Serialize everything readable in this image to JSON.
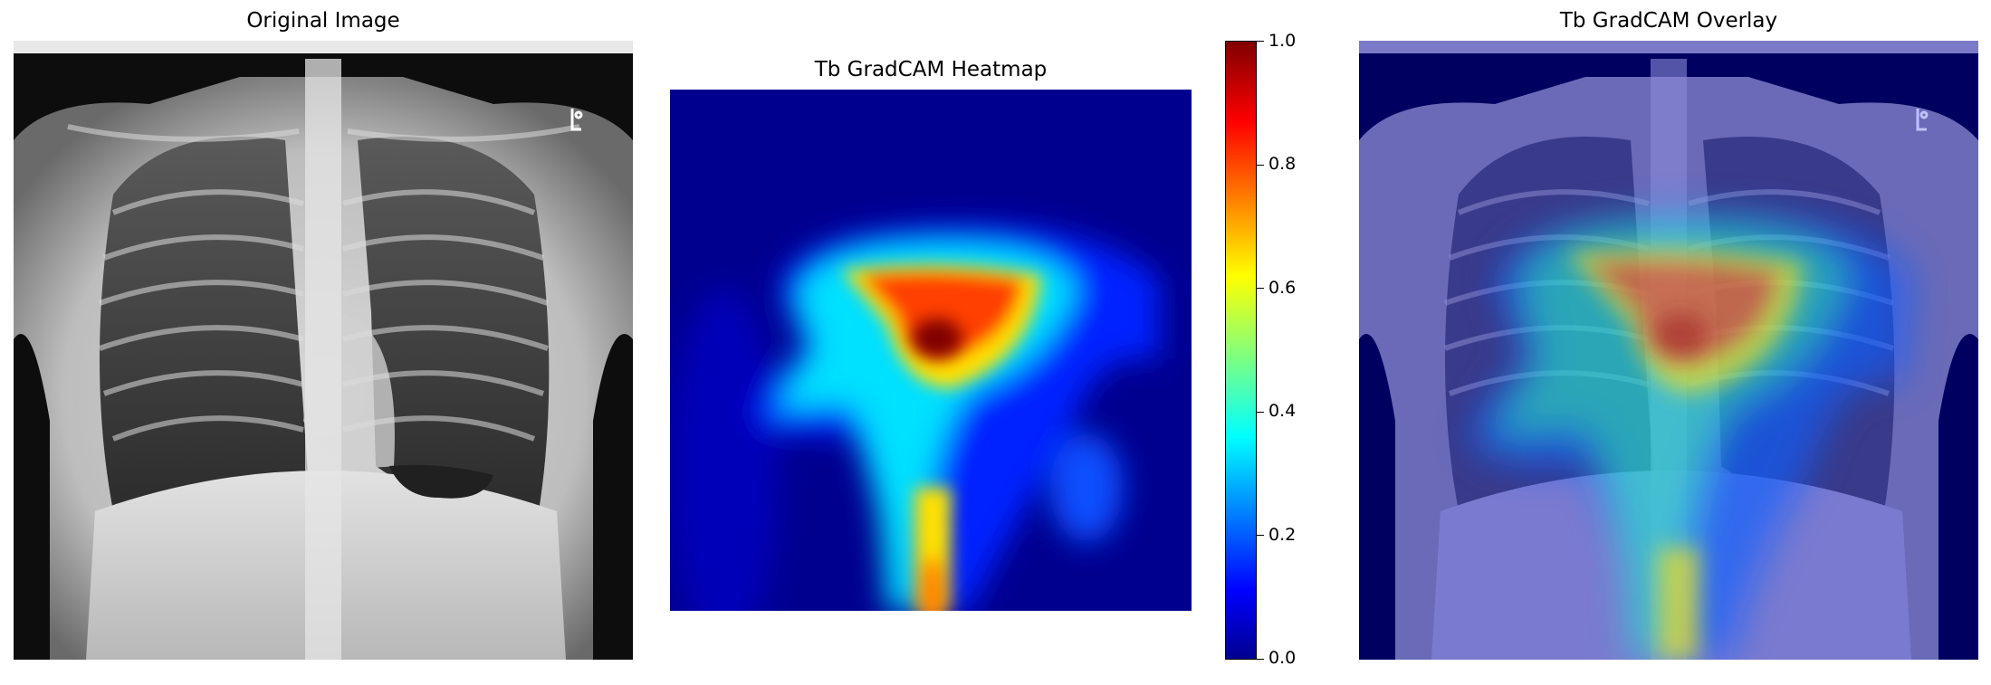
{
  "panels": {
    "original": {
      "title": "Original Image"
    },
    "heatmap": {
      "title": "Tb GradCAM Heatmap"
    },
    "overlay": {
      "title": "Tb GradCAM Overlay"
    }
  },
  "colorbar": {
    "colormap": "jet",
    "range": [
      0.0,
      1.0
    ],
    "ticks": [
      "0.0",
      "0.2",
      "0.4",
      "0.6",
      "0.8",
      "1.0"
    ],
    "stops": [
      {
        "v": 0.0,
        "c": "#00008f"
      },
      {
        "v": 0.11,
        "c": "#0000ff"
      },
      {
        "v": 0.36,
        "c": "#00ffff"
      },
      {
        "v": 0.62,
        "c": "#ffff00"
      },
      {
        "v": 0.87,
        "c": "#ff0000"
      },
      {
        "v": 1.0,
        "c": "#800000"
      }
    ]
  },
  "chart_data": {
    "type": "heatmap",
    "title": "Tb GradCAM Heatmap",
    "colormap": "jet",
    "value_range": [
      0.0,
      1.0
    ],
    "peak_value": 1.0,
    "hotspots": [
      {
        "region": "upper-central",
        "value": 1.0
      },
      {
        "region": "lower-central",
        "value": 0.85
      }
    ],
    "grid": false,
    "axes": "off"
  }
}
